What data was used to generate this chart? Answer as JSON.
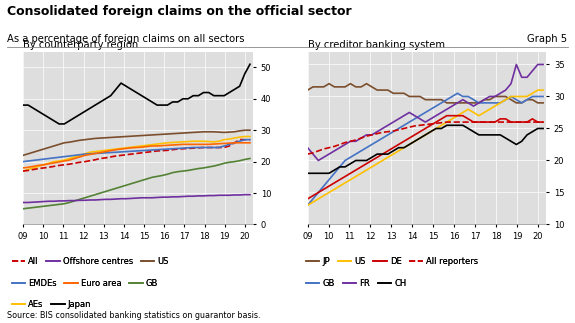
{
  "title": "Consolidated foreign claims on the official sector",
  "subtitle": "As a percentage of foreign claims on all sectors",
  "graph_label": "Graph 5",
  "source": "Source: BIS consolidated banking statistics on guarantor basis.",
  "left_panel_title": "By counterparty region",
  "right_panel_title": "By creditor banking system",
  "left_ylim": [
    0,
    55
  ],
  "left_yticks": [
    0,
    10,
    20,
    30,
    40,
    50
  ],
  "right_ylim": [
    10,
    37
  ],
  "right_yticks": [
    10,
    15,
    20,
    25,
    30,
    35
  ],
  "xtick_labels": [
    "09",
    "10",
    "11",
    "12",
    "13",
    "14",
    "15",
    "16",
    "17",
    "18",
    "19",
    "20"
  ],
  "bg_color": "#e0e0e0",
  "left_series_styles": {
    "All": {
      "color": "#cc0000",
      "ls": "--",
      "lw": 1.2
    },
    "EMDEs": {
      "color": "#4472c4",
      "ls": "-",
      "lw": 1.2
    },
    "AEs": {
      "color": "#ffc000",
      "ls": "-",
      "lw": 1.2
    },
    "Offshore centres": {
      "color": "#7030a0",
      "ls": "-",
      "lw": 1.2
    },
    "Euro area": {
      "color": "#ff6600",
      "ls": "-",
      "lw": 1.2
    },
    "Japan": {
      "color": "#000000",
      "ls": "-",
      "lw": 1.2
    },
    "US": {
      "color": "#7b4f2e",
      "ls": "-",
      "lw": 1.2
    },
    "GB": {
      "color": "#548235",
      "ls": "-",
      "lw": 1.2
    }
  },
  "right_series_styles": {
    "JP": {
      "color": "#7b4f2e",
      "ls": "-",
      "lw": 1.2
    },
    "US": {
      "color": "#ffc000",
      "ls": "-",
      "lw": 1.2
    },
    "DE": {
      "color": "#cc0000",
      "ls": "-",
      "lw": 1.2
    },
    "All reporters": {
      "color": "#cc0000",
      "ls": "--",
      "lw": 1.2
    },
    "GB": {
      "color": "#4472c4",
      "ls": "-",
      "lw": 1.2
    },
    "FR": {
      "color": "#7030a0",
      "ls": "-",
      "lw": 1.2
    },
    "CH": {
      "color": "#000000",
      "ls": "-",
      "lw": 1.2
    }
  }
}
